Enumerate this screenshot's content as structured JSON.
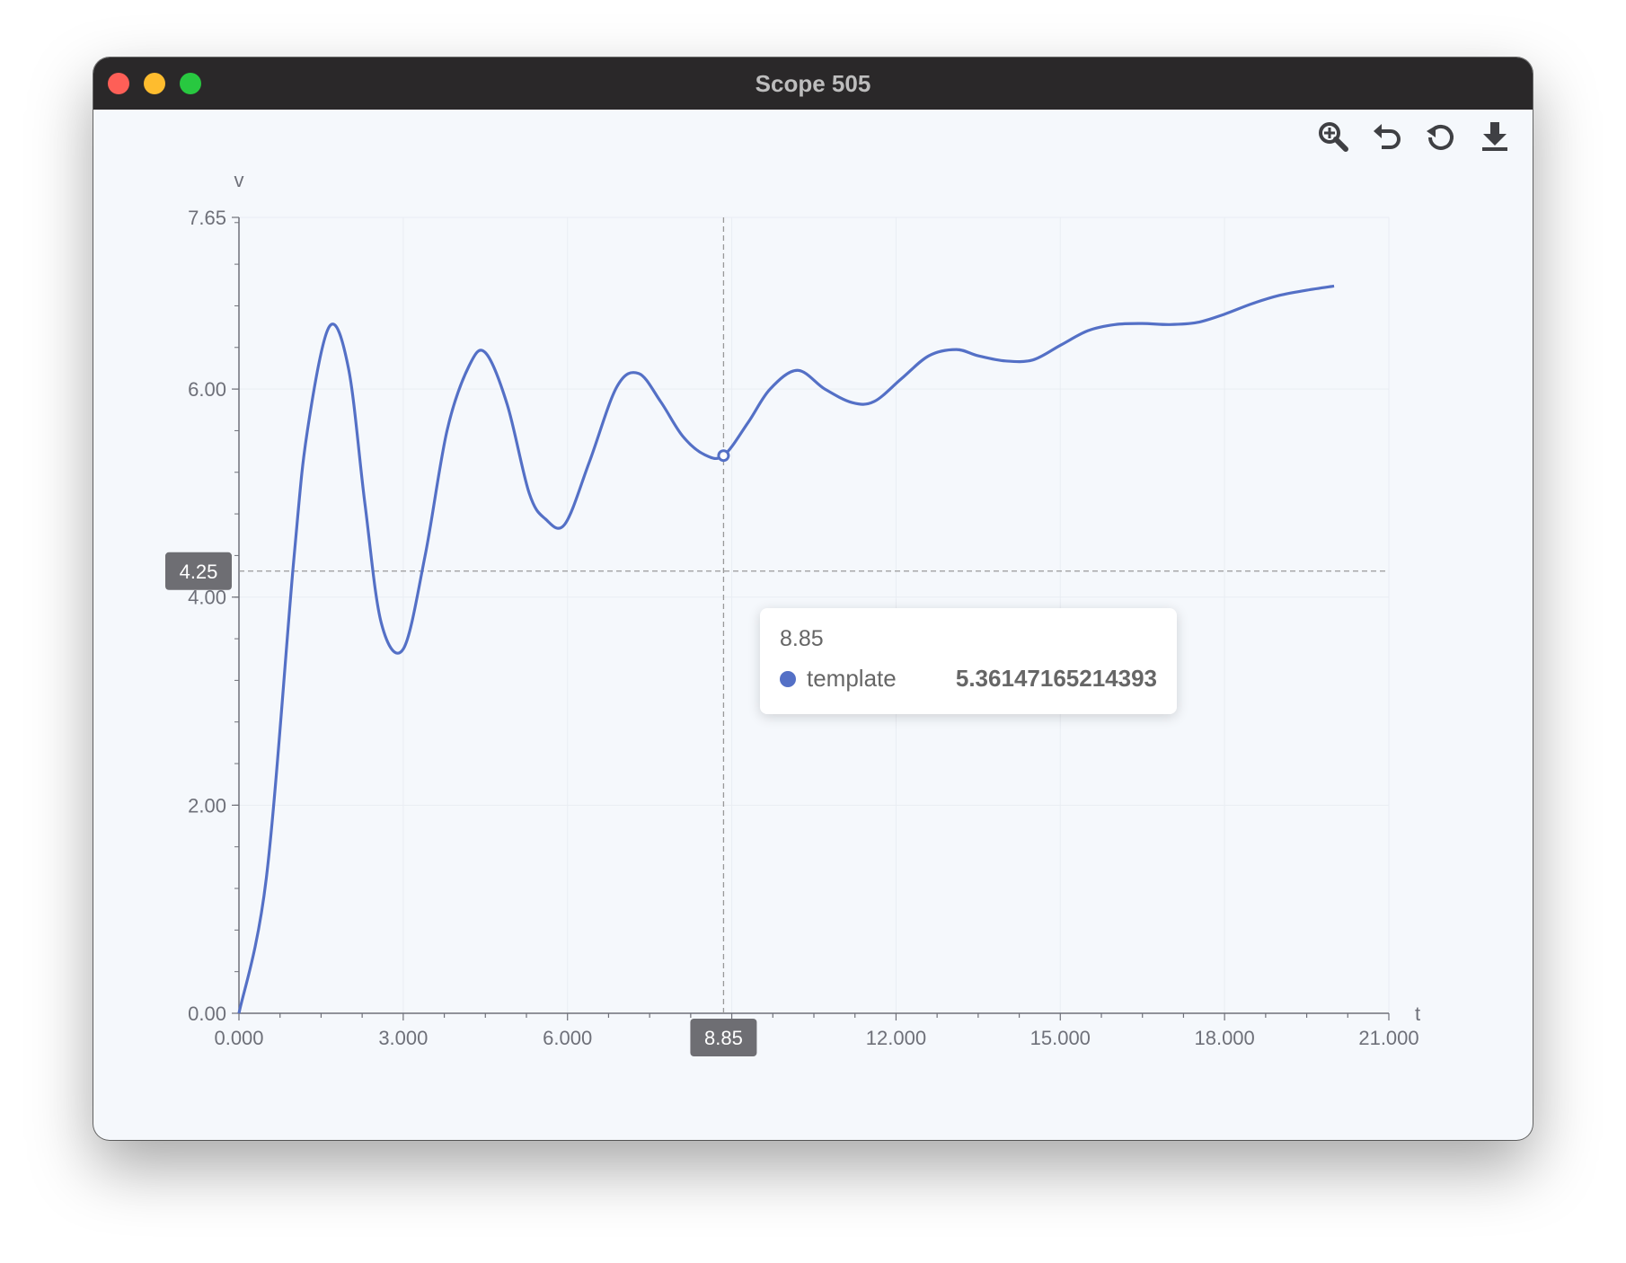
{
  "window": {
    "title": "Scope 505"
  },
  "toolbar": {
    "icons": [
      "zoom-icon",
      "undo-icon",
      "reset-icon",
      "download-icon"
    ]
  },
  "colors": {
    "series": "#5470c6",
    "axis": "#6e7079",
    "grid": "#e9edf3",
    "pointer": "#999999",
    "label_bg": "#6e6e73"
  },
  "chart_data": {
    "type": "line",
    "title": "",
    "xlabel": "t",
    "ylabel": "v",
    "xlim": [
      0,
      21
    ],
    "ylim": [
      0,
      7.65
    ],
    "x_ticks": [
      "0.000",
      "3.000",
      "6.000",
      "12.000",
      "15.000",
      "18.000",
      "21.000"
    ],
    "y_ticks": [
      "0.00",
      "2.00",
      "4.00",
      "6.00",
      "7.65"
    ],
    "grid": true,
    "legend": "none",
    "series": [
      {
        "name": "template",
        "x": [
          0,
          0.5,
          1,
          1.25,
          1.65,
          2,
          2.3,
          2.6,
          3,
          3.4,
          3.8,
          4.2,
          4.5,
          4.9,
          5.3,
          5.6,
          5.95,
          6.4,
          6.9,
          7.3,
          7.7,
          8.1,
          8.5,
          8.85,
          9.3,
          9.7,
          10.2,
          10.7,
          11.2,
          11.6,
          12.1,
          12.6,
          13.1,
          13.5,
          14.0,
          14.5,
          15.0,
          15.5,
          16.0,
          16.5,
          17.0,
          17.5,
          18.0,
          18.5,
          19.0,
          19.5,
          20.0
        ],
        "values": [
          0,
          1.3,
          4.35,
          5.6,
          6.6,
          6.2,
          4.9,
          3.75,
          3.5,
          4.4,
          5.6,
          6.22,
          6.35,
          5.85,
          5.0,
          4.75,
          4.7,
          5.3,
          6.02,
          6.15,
          5.88,
          5.55,
          5.37,
          5.36,
          5.68,
          6.0,
          6.18,
          6.0,
          5.87,
          5.88,
          6.1,
          6.32,
          6.38,
          6.32,
          6.27,
          6.28,
          6.42,
          6.56,
          6.62,
          6.63,
          6.62,
          6.64,
          6.72,
          6.82,
          6.9,
          6.95,
          6.99
        ]
      }
    ],
    "crosshair": {
      "x_label": "8.85",
      "y_label": "4.25",
      "x": 8.85,
      "y": 4.25
    },
    "tooltip": {
      "x_value": "8.85",
      "series_name": "template",
      "value": "5.36147165214393"
    }
  }
}
